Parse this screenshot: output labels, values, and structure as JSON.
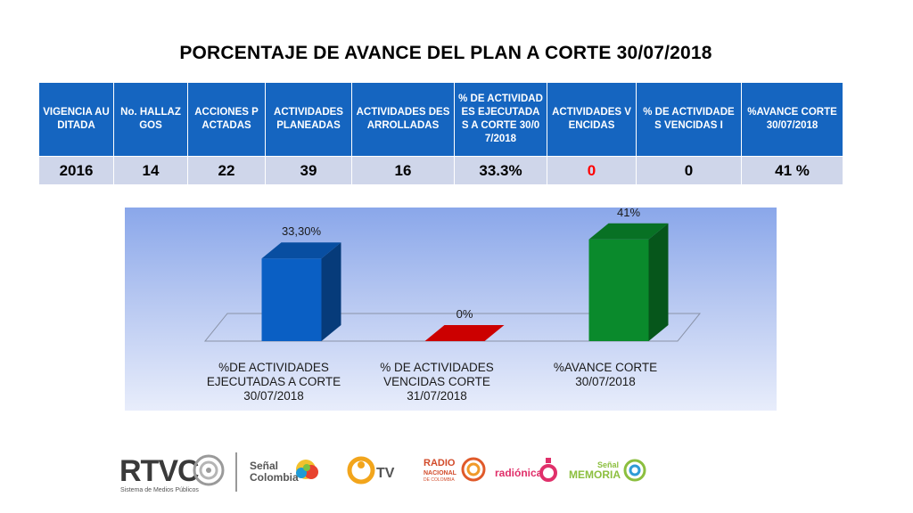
{
  "title": "PORCENTAJE  DE AVANCE DEL PLAN A CORTE 30/07/2018",
  "table": {
    "headers": [
      "VIGENCIA AUDITADA",
      "No. HALLAZGOS",
      "ACCIONES PACTADAS",
      "ACTIVIDADES PLANEADAS",
      "ACTIVIDADES DESARROLLADAS",
      "% DE ACTIVIDADES EJECUTADAS A CORTE 30/07/2018",
      "ACTIVIDADES VENCIDAS",
      "% DE ACTIVIDADES VENCIDAS I",
      "%AVANCE CORTE 30/07/2018"
    ],
    "row": [
      "2016",
      "14",
      "22",
      "39",
      "16",
      "33.3%",
      "0",
      "0",
      "41 %"
    ]
  },
  "chart_data": {
    "type": "bar",
    "categories": [
      "%DE ACTIVIDADES EJECUTADAS A CORTE 30/07/2018",
      "% DE ACTIVIDADES VENCIDAS CORTE 31/07/2018",
      "%AVANCE  CORTE 30/07/2018"
    ],
    "values": [
      33.3,
      0,
      41
    ],
    "data_labels": [
      "33,30%",
      "0%",
      "41%"
    ],
    "colors": [
      "#0a5fc4",
      "#cc0000",
      "#0a8a2c"
    ],
    "ylim": [
      0,
      45
    ],
    "grid": false,
    "legend": false,
    "title": "",
    "xlabel": "",
    "ylabel": ""
  },
  "footer": {
    "rtvc": "RTVC",
    "rtvc_sub": "Sistema de Medios Públicos",
    "senal": "Señal",
    "colombia": "Colombia",
    "tv": "TV",
    "radio1": "RADIO",
    "radio2": "NACIONAL",
    "radio3": "DE COLOMBIA",
    "radionica": "radiónica",
    "memoria_senal": "Señal",
    "memoria": "MEMORIA"
  }
}
